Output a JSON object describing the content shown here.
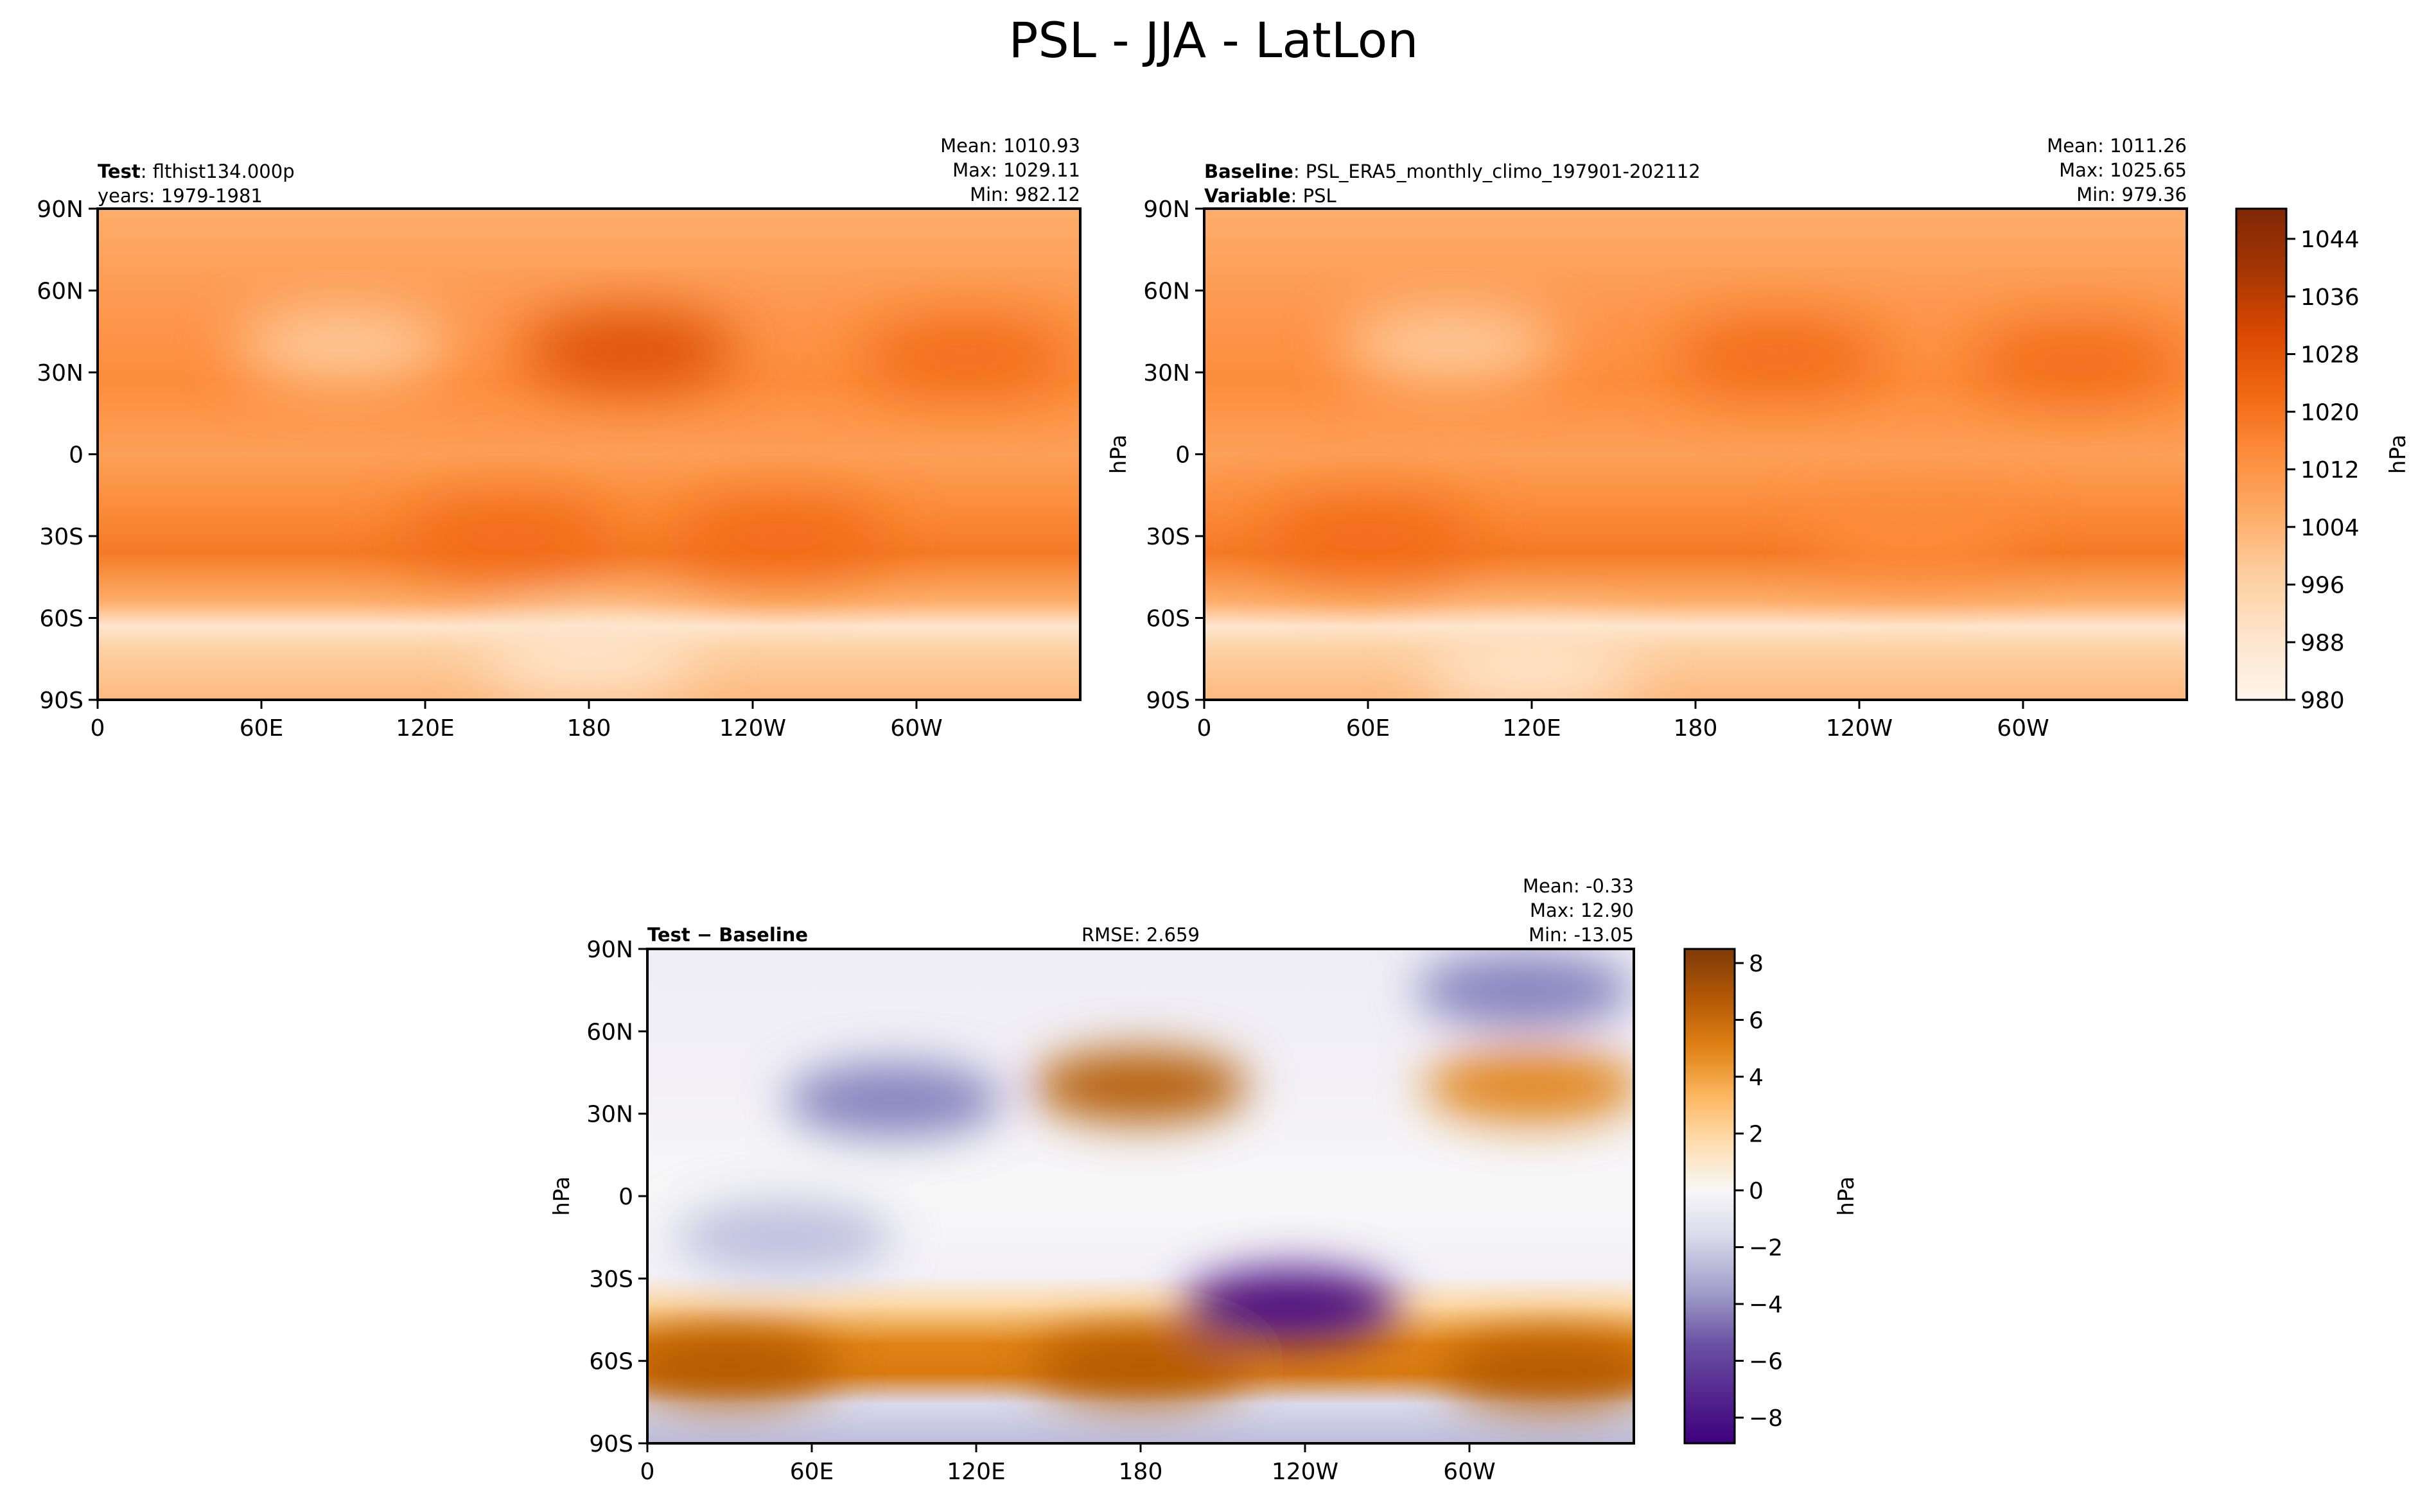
{
  "title": "PSL - JJA - LatLon",
  "colors": {
    "psl_ramp": [
      "#fff5eb",
      "#fee6ce",
      "#fdd0a2",
      "#fdae6b",
      "#fd8d3c",
      "#f16913",
      "#d94801",
      "#a63603",
      "#7f2704"
    ],
    "diff_ramp": [
      "#3f007d",
      "#54278f",
      "#6a51a3",
      "#807dba",
      "#9e9ac8",
      "#bcbddc",
      "#dadaeb",
      "#efedf5",
      "#f7f7f7",
      "#fee0b6",
      "#fdb863",
      "#e08214",
      "#b35806",
      "#7f3b08"
    ],
    "coast": "#000000",
    "missing": "#ffffff"
  },
  "chart_data": [
    {
      "type": "heatmap",
      "panel": "test",
      "left_title_bold": "Test",
      "left_title_rest": ": flthist134.000p",
      "left_subtitle": "years: 1979-1981",
      "stats": [
        "Mean: 1010.93",
        "Max: 1029.11",
        "Min: 982.12"
      ],
      "x_ticks": [
        "0",
        "60E",
        "120E",
        "180",
        "120W",
        "60W"
      ],
      "y_ticks": [
        "90N",
        "60N",
        "30N",
        "0",
        "30S",
        "60S",
        "90S"
      ],
      "x_range": [
        0,
        360
      ],
      "y_range": [
        -90,
        90
      ],
      "features": [
        {
          "lon": 195,
          "lat": 38,
          "value": 1026
        },
        {
          "lon": 318,
          "lat": 36,
          "value": 1025
        },
        {
          "lon": 90,
          "lat": 40,
          "value": 1000
        },
        {
          "lon": 150,
          "lat": -30,
          "value": 1018
        },
        {
          "lon": 250,
          "lat": -30,
          "value": 1018
        },
        {
          "lon": 180,
          "lat": -75,
          "value": 990
        }
      ]
    },
    {
      "type": "heatmap",
      "panel": "baseline",
      "left_title_bold": "Baseline",
      "left_title_rest": ": PSL_ERA5_monthly_climo_197901-202112",
      "left_subtitle_bold": "Variable",
      "left_subtitle_rest": ": PSL",
      "y_axis_label": "hPa",
      "stats": [
        "Mean: 1011.26",
        "Max: 1025.65",
        "Min: 979.36"
      ],
      "x_ticks": [
        "0",
        "60E",
        "120E",
        "180",
        "120W",
        "60W"
      ],
      "y_ticks": [
        "90N",
        "60N",
        "30N",
        "0",
        "30S",
        "60S",
        "90S"
      ],
      "x_range": [
        0,
        360
      ],
      "y_range": [
        -90,
        90
      ],
      "colorbar": {
        "label": "hPa",
        "range": [
          980,
          1048
        ],
        "ticks": [
          "1044",
          "1036",
          "1028",
          "1020",
          "1012",
          "1004",
          "996",
          "988",
          "980"
        ]
      },
      "features": [
        {
          "lon": 210,
          "lat": 36,
          "value": 1024
        },
        {
          "lon": 320,
          "lat": 34,
          "value": 1023
        },
        {
          "lon": 90,
          "lat": 40,
          "value": 1000
        },
        {
          "lon": 60,
          "lat": -30,
          "value": 1018
        },
        {
          "lon": 260,
          "lat": -30,
          "value": 1017
        },
        {
          "lon": 120,
          "lat": -80,
          "value": 988
        }
      ]
    },
    {
      "type": "heatmap",
      "panel": "difference",
      "left_title": "Test − Baseline",
      "center_title": "RMSE: 2.659",
      "y_axis_label": "hPa",
      "stats": [
        "Mean: -0.33",
        "Max: 12.90",
        "Min: -13.05"
      ],
      "x_ticks": [
        "0",
        "60E",
        "120E",
        "180",
        "120W",
        "60W"
      ],
      "y_ticks": [
        "90N",
        "60N",
        "30N",
        "0",
        "30S",
        "60S",
        "90S"
      ],
      "x_range": [
        0,
        360
      ],
      "y_range": [
        -90,
        90
      ],
      "colorbar": {
        "label": "hPa",
        "range": [
          -9,
          8.5
        ],
        "ticks": [
          "8",
          "6",
          "4",
          "2",
          "0",
          "−2",
          "−4",
          "−6",
          "−8"
        ]
      },
      "features": [
        {
          "lon": 180,
          "lat": 40,
          "value": 6
        },
        {
          "lon": 323,
          "lat": 40,
          "value": 5
        },
        {
          "lon": 235,
          "lat": -40,
          "value": -9
        },
        {
          "lon": 90,
          "lat": 35,
          "value": -5
        },
        {
          "lon": 320,
          "lat": 75,
          "value": -5
        },
        {
          "lon": 180,
          "lat": -62,
          "value": 6
        },
        {
          "lon": 330,
          "lat": -64,
          "value": 6
        },
        {
          "lon": 30,
          "lat": -62,
          "value": 6
        },
        {
          "lon": 50,
          "lat": -15,
          "value": -2
        }
      ]
    }
  ]
}
